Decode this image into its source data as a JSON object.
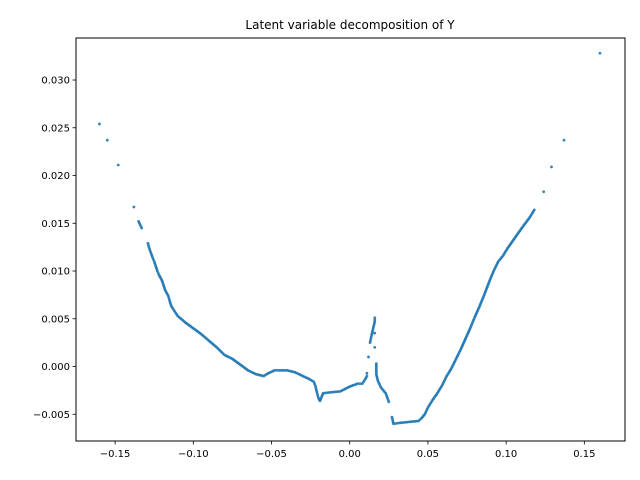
{
  "chart_data": {
    "type": "scatter",
    "title": "Latent variable decomposition of Y",
    "xlabel": "",
    "ylabel": "",
    "xlim": [
      -0.175,
      0.176
    ],
    "ylim": [
      -0.0078,
      0.0344
    ],
    "xticks": [
      -0.15,
      -0.1,
      -0.05,
      0.0,
      0.05,
      0.1,
      0.15
    ],
    "xtick_labels": [
      "−0.15",
      "−0.10",
      "−0.05",
      "0.00",
      "0.05",
      "0.10",
      "0.15"
    ],
    "yticks": [
      -0.005,
      0.0,
      0.005,
      0.01,
      0.015,
      0.02,
      0.025,
      0.03
    ],
    "ytick_labels": [
      "−0.005",
      "0.000",
      "0.005",
      "0.010",
      "0.015",
      "0.020",
      "0.025",
      "0.030"
    ],
    "grid": false,
    "marker_color": "#1f77b4",
    "series": [
      {
        "points": [
          [
            -0.16,
            0.0254
          ],
          [
            -0.155,
            0.0237
          ],
          [
            -0.148,
            0.0211
          ],
          [
            -0.138,
            0.0167
          ],
          [
            -0.135,
            0.0152
          ],
          [
            -0.133,
            0.0145
          ],
          [
            -0.129,
            0.0129
          ],
          [
            -0.128,
            0.0123
          ],
          [
            -0.126,
            0.0114
          ],
          [
            -0.125,
            0.011
          ],
          [
            -0.123,
            0.01
          ],
          [
            -0.122,
            0.0096
          ],
          [
            -0.12,
            0.009
          ],
          [
            -0.119,
            0.0085
          ],
          [
            -0.118,
            0.008
          ],
          [
            -0.116,
            0.0074
          ],
          [
            -0.115,
            0.0068
          ],
          [
            -0.114,
            0.0063
          ],
          [
            -0.112,
            0.0058
          ],
          [
            -0.11,
            0.0053
          ],
          [
            -0.105,
            0.0046
          ],
          [
            -0.1,
            0.004
          ],
          [
            -0.095,
            0.0034
          ],
          [
            -0.09,
            0.0027
          ],
          [
            -0.085,
            0.002
          ],
          [
            -0.08,
            0.0012
          ],
          [
            -0.075,
            0.0008
          ],
          [
            -0.07,
            0.0002
          ],
          [
            -0.065,
            -0.0004
          ],
          [
            -0.06,
            -0.0008
          ],
          [
            -0.055,
            -0.001
          ],
          [
            -0.052,
            -0.0007
          ],
          [
            -0.048,
            -0.0004
          ],
          [
            -0.045,
            -0.0004
          ],
          [
            -0.04,
            -0.0004
          ],
          [
            -0.035,
            -0.0006
          ],
          [
            -0.03,
            -0.001
          ],
          [
            -0.026,
            -0.0013
          ],
          [
            -0.023,
            -0.0016
          ],
          [
            -0.022,
            -0.002
          ],
          [
            -0.021,
            -0.0027
          ],
          [
            -0.02,
            -0.0033
          ],
          [
            -0.019,
            -0.0036
          ],
          [
            -0.017,
            -0.0028
          ],
          [
            -0.012,
            -0.0027
          ],
          [
            -0.006,
            -0.0026
          ],
          [
            0.0,
            -0.0021
          ],
          [
            0.005,
            -0.0018
          ],
          [
            0.008,
            -0.0018
          ],
          [
            0.01,
            -0.0013
          ],
          [
            0.011,
            -0.001
          ],
          [
            0.011,
            -0.0007
          ],
          [
            0.012,
            0.001
          ],
          [
            0.013,
            0.0025
          ],
          [
            0.014,
            0.0033
          ],
          [
            0.015,
            0.004
          ],
          [
            0.016,
            0.0047
          ],
          [
            0.016,
            0.0051
          ],
          [
            0.016,
            0.0035
          ],
          [
            0.016,
            0.002
          ],
          [
            0.017,
            0.0003
          ],
          [
            0.017,
            -0.0008
          ],
          [
            0.018,
            -0.0015
          ],
          [
            0.02,
            -0.0022
          ],
          [
            0.023,
            -0.0028
          ],
          [
            0.025,
            -0.0037
          ],
          [
            0.027,
            -0.0053
          ],
          [
            0.028,
            -0.006
          ],
          [
            0.032,
            -0.0059
          ],
          [
            0.038,
            -0.0058
          ],
          [
            0.044,
            -0.0057
          ],
          [
            0.046,
            -0.0054
          ],
          [
            0.048,
            -0.005
          ],
          [
            0.05,
            -0.0043
          ],
          [
            0.053,
            -0.0035
          ],
          [
            0.056,
            -0.0028
          ],
          [
            0.059,
            -0.002
          ],
          [
            0.062,
            -0.001
          ],
          [
            0.065,
            -0.0002
          ],
          [
            0.068,
            0.0008
          ],
          [
            0.071,
            0.0018
          ],
          [
            0.074,
            0.0029
          ],
          [
            0.077,
            0.004
          ],
          [
            0.08,
            0.0052
          ],
          [
            0.083,
            0.0063
          ],
          [
            0.086,
            0.0075
          ],
          [
            0.089,
            0.0088
          ],
          [
            0.092,
            0.01
          ],
          [
            0.095,
            0.011
          ],
          [
            0.098,
            0.0116
          ],
          [
            0.101,
            0.0124
          ],
          [
            0.104,
            0.0131
          ],
          [
            0.107,
            0.0138
          ],
          [
            0.11,
            0.0145
          ],
          [
            0.115,
            0.0156
          ],
          [
            0.118,
            0.0164
          ],
          [
            0.124,
            0.0183
          ],
          [
            0.129,
            0.0209
          ],
          [
            0.137,
            0.0237
          ],
          [
            0.16,
            0.0328
          ]
        ]
      }
    ]
  }
}
